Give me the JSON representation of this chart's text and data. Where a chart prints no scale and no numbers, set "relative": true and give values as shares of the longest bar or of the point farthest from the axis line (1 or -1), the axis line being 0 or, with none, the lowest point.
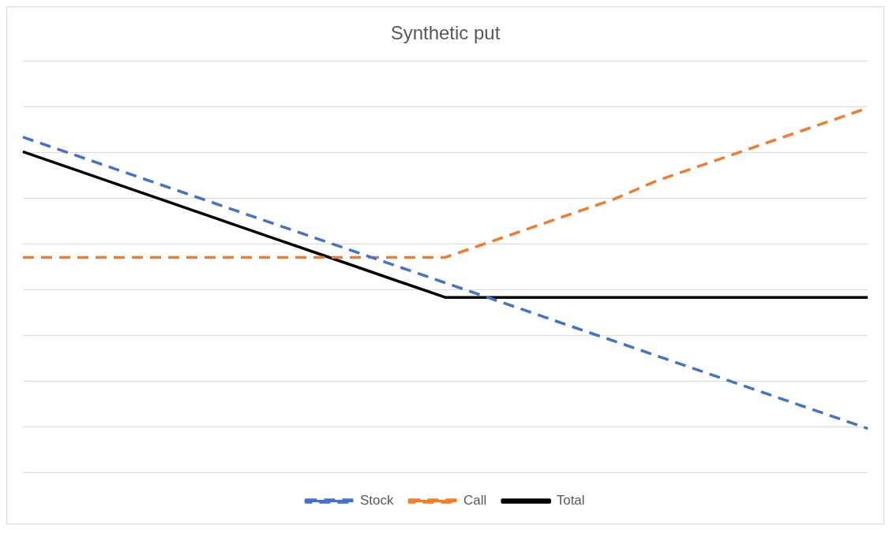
{
  "chart_data": {
    "type": "line",
    "title": "Synthetic put",
    "relative": true,
    "grid": "y",
    "legend": "bottom",
    "marker": "none",
    "categories": [
      null,
      null,
      null,
      null,
      null,
      null,
      null,
      null,
      null,
      null,
      null,
      null,
      null,
      null,
      null,
      null,
      null,
      null,
      null,
      null,
      null
    ],
    "series": [
      {
        "name": "Stock",
        "color": "#4472c4",
        "line_style": "dashed",
        "values": [
          0.92,
          0.88,
          0.84,
          0.8,
          0.76,
          0.72,
          0.68,
          0.64,
          0.6,
          0.56,
          0.52,
          0.48,
          0.44,
          0.4,
          0.36,
          0.32,
          0.28,
          0.24,
          0.2,
          0.16,
          0.12
        ]
      },
      {
        "name": "Call",
        "color": "#ed7d31",
        "line_style": "dashed",
        "values": [
          0.59,
          0.59,
          0.59,
          0.59,
          0.59,
          0.59,
          0.59,
          0.59,
          0.59,
          0.59,
          0.59,
          0.63,
          0.67,
          0.71,
          0.75,
          0.8,
          0.84,
          0.88,
          0.92,
          0.96,
          1
        ]
      },
      {
        "name": "Total",
        "color": "#000000",
        "line_style": "solid",
        "values": [
          0.88,
          0.84,
          0.8,
          0.76,
          0.72,
          0.68,
          0.64,
          0.6,
          0.56,
          0.52,
          0.48,
          0.48,
          0.48,
          0.48,
          0.48,
          0.48,
          0.48,
          0.48,
          0.48,
          0.48,
          0.48
        ]
      }
    ]
  }
}
